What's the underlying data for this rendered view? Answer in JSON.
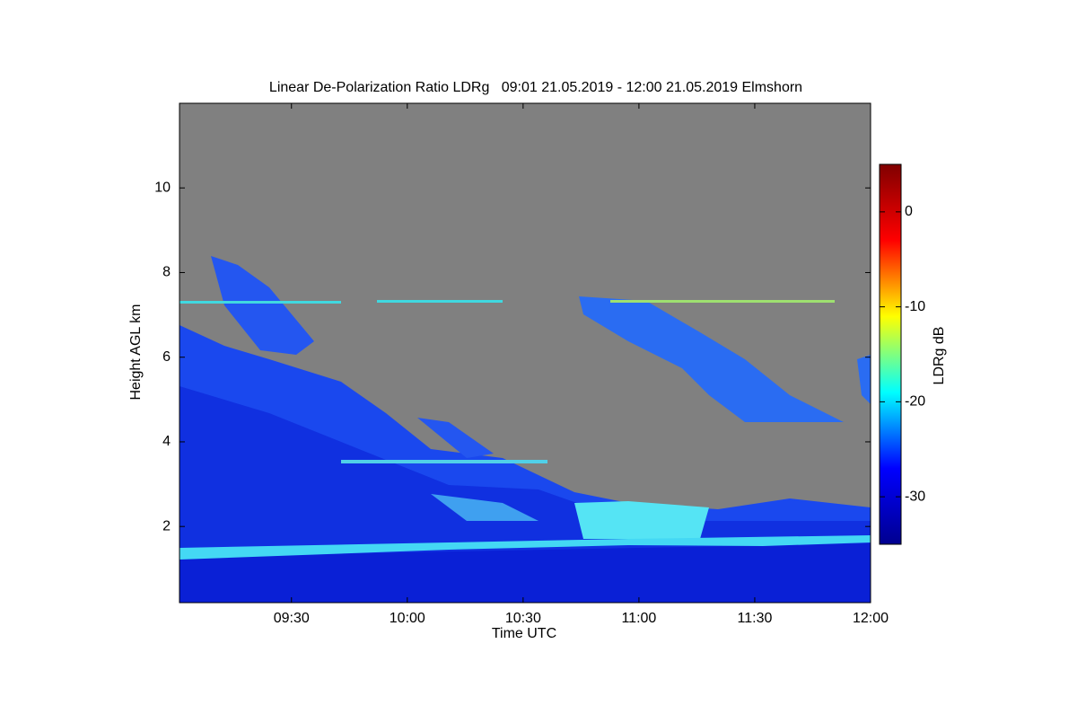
{
  "chart_data": {
    "type": "heatmap",
    "title": "Linear De-Polarization Ratio LDRg   09:01 21.05.2019 - 12:00 21.05.2019 Elmshorn",
    "xlabel": "Time UTC",
    "ylabel": "Height AGL km",
    "colorbar_label": "LDRg dB",
    "xlim": [
      541,
      720
    ],
    "xticks": [
      {
        "value": 570,
        "label": "09:30"
      },
      {
        "value": 600,
        "label": "10:00"
      },
      {
        "value": 630,
        "label": "10:30"
      },
      {
        "value": 660,
        "label": "11:00"
      },
      {
        "value": 690,
        "label": "11:30"
      },
      {
        "value": 720,
        "label": "12:00"
      }
    ],
    "ylim": [
      0.2,
      12
    ],
    "yticks": [
      2,
      4,
      6,
      8,
      10
    ],
    "clim": [
      -35,
      5
    ],
    "cticks": [
      0,
      -10,
      -20,
      -30
    ],
    "colormap": [
      "#00008f",
      "#0000ff",
      "#00ffff",
      "#ffff00",
      "#ff0000",
      "#800000"
    ]
  }
}
